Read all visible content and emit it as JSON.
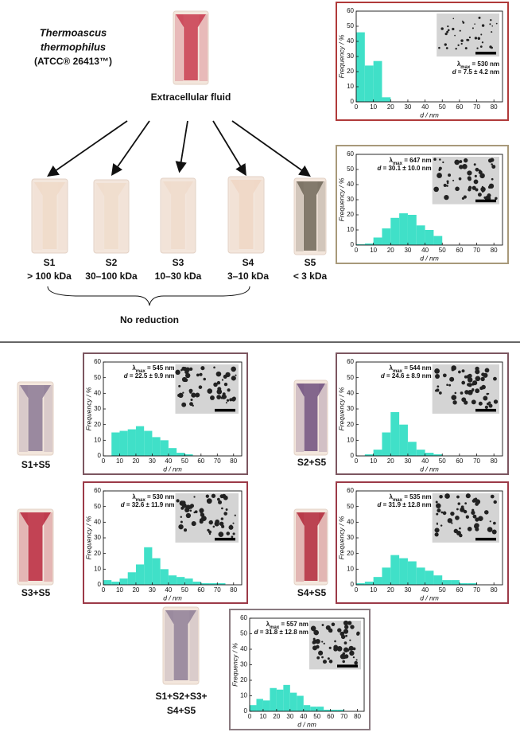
{
  "organism": [
    "Thermoascus",
    "thermophilus",
    "(ATCC® 26413™)"
  ],
  "source_label": "Extracellular fluid",
  "fractions": [
    {
      "name": "S1",
      "range": "> 100 kDa"
    },
    {
      "name": "S2",
      "range": "30–100 kDa"
    },
    {
      "name": "S3",
      "range": "10–30 kDa"
    },
    {
      "name": "S4",
      "range": "3–10 kDa"
    },
    {
      "name": "S5",
      "range": "< 3 kDa"
    }
  ],
  "no_reduction": "No reduction",
  "mixtures": [
    [
      "S1+S5"
    ],
    [
      "S2+S5"
    ],
    [
      "S3+S5"
    ],
    [
      "S4+S5"
    ],
    [
      "S1+S2+S3+",
      "S4+S5"
    ]
  ],
  "chart_data": [
    {
      "type": "histogram",
      "bins": [
        0,
        5,
        10,
        15,
        20
      ],
      "values": [
        46,
        24,
        27,
        3
      ],
      "color": "#40e0c8",
      "xlim": [
        0,
        85
      ],
      "ylim": [
        0,
        60
      ],
      "xticks": [
        0,
        10,
        20,
        30,
        40,
        50,
        60,
        70,
        80
      ],
      "yticks": [
        0,
        10,
        20,
        30,
        40,
        50,
        60
      ],
      "xlabel": "d / nm",
      "ylabel": "Frequency / %",
      "annotation": {
        "symbol": "λ",
        "sub": "max",
        "text": " = 530 nm",
        "d": "d",
        "d_text": " = 7.5 ± 4.2 nm"
      }
    },
    {
      "type": "histogram",
      "bins": [
        0,
        5,
        10,
        15,
        20,
        25,
        30,
        35,
        40,
        45,
        50
      ],
      "values": [
        0.5,
        1,
        5,
        11,
        18,
        21,
        20,
        13,
        10,
        6
      ],
      "color": "#40e0c8",
      "xlim": [
        0,
        85
      ],
      "ylim": [
        0,
        60
      ],
      "xticks": [
        0,
        10,
        20,
        30,
        40,
        50,
        60,
        70,
        80
      ],
      "yticks": [
        0,
        10,
        20,
        30,
        40,
        50,
        60
      ],
      "xlabel": "d / nm",
      "ylabel": "Frequency / %",
      "annotation": {
        "symbol": "λ",
        "sub": "max",
        "text": " = 647 nm",
        "d": "d",
        "d_text": " = 30.1 ± 10.0 nm"
      }
    },
    {
      "type": "histogram",
      "bins": [
        5,
        10,
        15,
        20,
        25,
        30,
        35,
        40,
        45,
        50,
        55
      ],
      "values": [
        15,
        16,
        17,
        19,
        16,
        12,
        10,
        5,
        2,
        1
      ],
      "color": "#40e0c8",
      "xlim": [
        0,
        85
      ],
      "ylim": [
        0,
        60
      ],
      "xticks": [
        0,
        10,
        20,
        30,
        40,
        50,
        60,
        70,
        80
      ],
      "yticks": [
        0,
        10,
        20,
        30,
        40,
        50,
        60
      ],
      "xlabel": "d / nm",
      "ylabel": "Frequency / %",
      "annotation": {
        "symbol": "λ",
        "sub": "max",
        "text": " = 545 nm",
        "d": "d",
        "d_text": " = 22.5 ± 9.9 nm"
      }
    },
    {
      "type": "histogram",
      "bins": [
        5,
        10,
        15,
        20,
        25,
        30,
        35,
        40,
        45,
        50
      ],
      "values": [
        1,
        4,
        15,
        28,
        20,
        9,
        4,
        2,
        1
      ],
      "color": "#40e0c8",
      "xlim": [
        0,
        85
      ],
      "ylim": [
        0,
        60
      ],
      "xticks": [
        0,
        10,
        20,
        30,
        40,
        50,
        60,
        70,
        80
      ],
      "yticks": [
        0,
        10,
        20,
        30,
        40,
        50,
        60
      ],
      "xlabel": "d / nm",
      "ylabel": "Frequency / %",
      "annotation": {
        "symbol": "λ",
        "sub": "max",
        "text": " = 544 nm",
        "d": "d",
        "d_text": " = 24.6 ± 8.9 nm"
      }
    },
    {
      "type": "histogram",
      "bins": [
        0,
        5,
        10,
        15,
        20,
        25,
        30,
        35,
        40,
        45,
        50,
        55,
        60,
        65,
        70,
        75
      ],
      "values": [
        3,
        2,
        4,
        8,
        13,
        24,
        17,
        10,
        6,
        5,
        4,
        2,
        1,
        1,
        1
      ],
      "color": "#40e0c8",
      "xlim": [
        0,
        85
      ],
      "ylim": [
        0,
        60
      ],
      "xticks": [
        0,
        10,
        20,
        30,
        40,
        50,
        60,
        70,
        80
      ],
      "yticks": [
        0,
        10,
        20,
        30,
        40,
        50,
        60
      ],
      "xlabel": "d / nm",
      "ylabel": "Frequency / %",
      "annotation": {
        "symbol": "λ",
        "sub": "max",
        "text": " = 530 nm",
        "d": "d",
        "d_text": " = 32.6 ± 11.9 nm"
      }
    },
    {
      "type": "histogram",
      "bins": [
        0,
        5,
        10,
        15,
        20,
        25,
        30,
        35,
        40,
        45,
        50,
        55,
        60,
        65,
        70
      ],
      "values": [
        1,
        2,
        5,
        11,
        19,
        17,
        15,
        11,
        9,
        6,
        3,
        3,
        1,
        1
      ],
      "color": "#40e0c8",
      "xlim": [
        0,
        85
      ],
      "ylim": [
        0,
        60
      ],
      "xticks": [
        0,
        10,
        20,
        30,
        40,
        50,
        60,
        70,
        80
      ],
      "yticks": [
        0,
        10,
        20,
        30,
        40,
        50,
        60
      ],
      "xlabel": "d / nm",
      "ylabel": "Frequency / %",
      "annotation": {
        "symbol": "λ",
        "sub": "max",
        "text": " = 535 nm",
        "d": "d",
        "d_text": " = 31.9 ± 12.8 nm"
      }
    },
    {
      "type": "histogram",
      "bins": [
        0,
        5,
        10,
        15,
        20,
        25,
        30,
        35,
        40,
        45,
        50,
        55,
        60,
        65,
        70
      ],
      "values": [
        4,
        8,
        7,
        15,
        14,
        17,
        12,
        10,
        4,
        3,
        3,
        1,
        1,
        1
      ],
      "color": "#40e0c8",
      "xlim": [
        0,
        85
      ],
      "ylim": [
        0,
        60
      ],
      "xticks": [
        0,
        10,
        20,
        30,
        40,
        50,
        60,
        70,
        80
      ],
      "yticks": [
        0,
        10,
        20,
        30,
        40,
        50,
        60
      ],
      "xlabel": "d / nm",
      "ylabel": "Frequency / %",
      "annotation": {
        "symbol": "λ",
        "sub": "max",
        "text": " = 557 nm",
        "d": "d",
        "d_text": " = 31.8 ± 12.8 nm"
      }
    }
  ]
}
